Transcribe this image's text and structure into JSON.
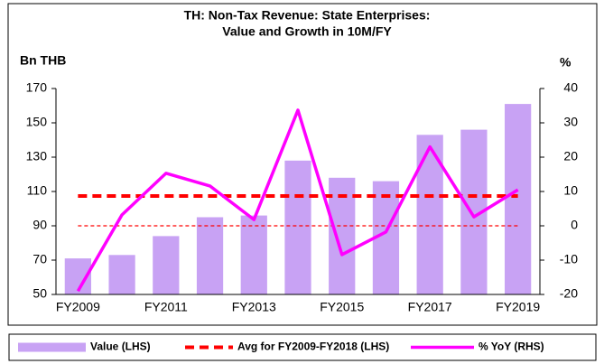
{
  "chart_data": {
    "type": "bar",
    "title": [
      "TH: Non-Tax Revenue: State Enterprises:",
      "Value and Growth in 10M/FY"
    ],
    "y_label": "Bn THB",
    "y2_label": "%",
    "categories": [
      "FY2009",
      null,
      "FY2011",
      null,
      "FY2013",
      null,
      "FY2015",
      null,
      "FY2017",
      null,
      "FY2019"
    ],
    "series": [
      {
        "name": "Value (LHS)",
        "type": "bar",
        "color": "#c8a2f4",
        "axis": "y",
        "values": [
          71,
          73,
          84,
          95,
          96,
          128,
          118,
          116,
          143,
          146,
          161
        ]
      },
      {
        "name": "Avg for FY2009-FY2018 (LHS)",
        "type": "line",
        "dashed": true,
        "color": "#ff0000",
        "axis": "y",
        "values": [
          107.4,
          107.4,
          107.4,
          107.4,
          107.4,
          107.4,
          107.4,
          107.4,
          107.4,
          107.4,
          107.4
        ]
      },
      {
        "name": "% YoY (RHS)",
        "type": "line",
        "dashed": false,
        "color": "#ff00ff",
        "axis": "y2",
        "values": [
          -19,
          3.2,
          15.3,
          11.6,
          1.8,
          33.7,
          -8.4,
          -1.8,
          23,
          2.6,
          10.5
        ]
      }
    ],
    "reference_lines": [
      {
        "axis": "y2",
        "value": 0,
        "color": "#ff0000"
      }
    ],
    "ylim": [
      50,
      170
    ],
    "yticks": [
      50,
      70,
      90,
      110,
      130,
      150,
      170
    ],
    "y2lim": [
      -20,
      40
    ],
    "y2ticks": [
      -20,
      -10,
      0,
      10,
      20,
      30,
      40
    ],
    "grid": false
  }
}
